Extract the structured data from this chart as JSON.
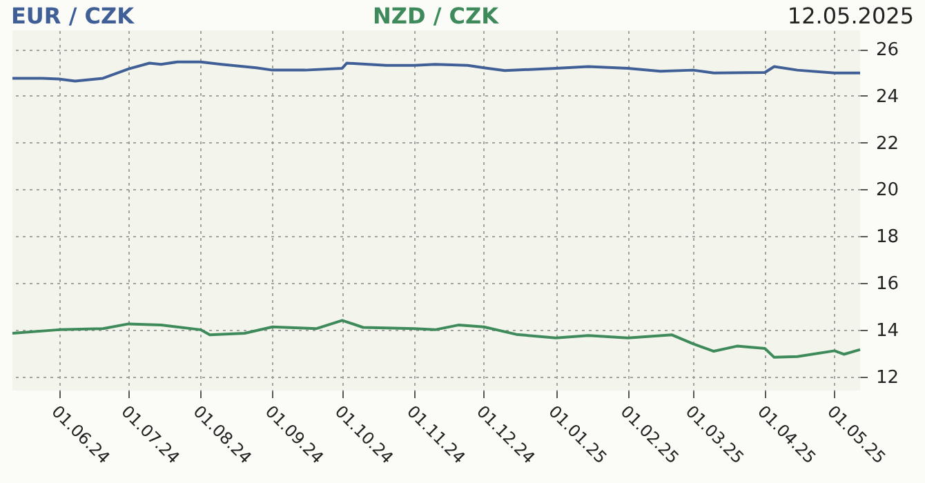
{
  "chart_data": {
    "type": "line",
    "annotations": [
      "12.05.2025"
    ],
    "xlim": [
      "2024-05-12",
      "2025-05-12"
    ],
    "xticks": [
      {
        "value": "2024-06-01",
        "label": "01.06.24"
      },
      {
        "value": "2024-07-01",
        "label": "01.07.24"
      },
      {
        "value": "2024-08-01",
        "label": "01.08.24"
      },
      {
        "value": "2024-09-01",
        "label": "01.09.24"
      },
      {
        "value": "2024-10-01",
        "label": "01.10.24"
      },
      {
        "value": "2024-11-01",
        "label": "01.11.24"
      },
      {
        "value": "2024-12-01",
        "label": "01.12.24"
      },
      {
        "value": "2025-01-01",
        "label": "01.01.25"
      },
      {
        "value": "2025-02-01",
        "label": "01.02.25"
      },
      {
        "value": "2025-03-01",
        "label": "01.03.25"
      },
      {
        "value": "2025-04-01",
        "label": "01.04.25"
      },
      {
        "value": "2025-05-01",
        "label": "01.05.25"
      }
    ],
    "ylim": [
      11.4,
      26.8
    ],
    "yticks": [
      12,
      14,
      16,
      18,
      20,
      22,
      24,
      26
    ],
    "grid": true,
    "line_style": "solid",
    "series": [
      {
        "name": "EUR / CZK",
        "color": "#3f5f96",
        "x": [
          "2024-05-12",
          "2024-05-25",
          "2024-06-01",
          "2024-06-08",
          "2024-06-20",
          "2024-07-01",
          "2024-07-10",
          "2024-07-15",
          "2024-07-22",
          "2024-08-01",
          "2024-08-10",
          "2024-08-25",
          "2024-09-01",
          "2024-09-15",
          "2024-10-01",
          "2024-10-03",
          "2024-10-20",
          "2024-11-01",
          "2024-11-10",
          "2024-11-24",
          "2024-12-01",
          "2024-12-10",
          "2025-01-01",
          "2025-01-15",
          "2025-02-01",
          "2025-02-15",
          "2025-03-01",
          "2025-03-10",
          "2025-04-01",
          "2025-04-05",
          "2025-04-15",
          "2025-05-01",
          "2025-05-12"
        ],
        "values": [
          24.75,
          24.75,
          24.72,
          24.63,
          24.75,
          25.15,
          25.4,
          25.35,
          25.45,
          25.45,
          25.35,
          25.2,
          25.1,
          25.1,
          25.18,
          25.4,
          25.3,
          25.3,
          25.35,
          25.3,
          25.2,
          25.08,
          25.18,
          25.25,
          25.18,
          25.05,
          25.1,
          24.98,
          25.0,
          25.25,
          25.1,
          24.98,
          24.98
        ]
      },
      {
        "name": "NZD / CZK",
        "color": "#3e8a5b",
        "x": [
          "2024-05-12",
          "2024-06-01",
          "2024-06-20",
          "2024-07-01",
          "2024-07-15",
          "2024-08-01",
          "2024-08-05",
          "2024-08-20",
          "2024-09-01",
          "2024-09-20",
          "2024-10-01",
          "2024-10-10",
          "2024-11-01",
          "2024-11-10",
          "2024-11-20",
          "2024-12-01",
          "2024-12-15",
          "2025-01-01",
          "2025-01-15",
          "2025-02-01",
          "2025-02-20",
          "2025-03-01",
          "2025-03-10",
          "2025-03-20",
          "2025-04-01",
          "2025-04-05",
          "2025-04-15",
          "2025-05-01",
          "2025-05-05",
          "2025-05-12"
        ],
        "values": [
          13.85,
          14.0,
          14.05,
          14.25,
          14.2,
          14.0,
          13.78,
          13.85,
          14.12,
          14.05,
          14.4,
          14.1,
          14.05,
          14.0,
          14.2,
          14.12,
          13.8,
          13.65,
          13.75,
          13.65,
          13.78,
          13.4,
          13.08,
          13.3,
          13.2,
          12.82,
          12.85,
          13.1,
          12.95,
          13.15
        ]
      }
    ]
  }
}
